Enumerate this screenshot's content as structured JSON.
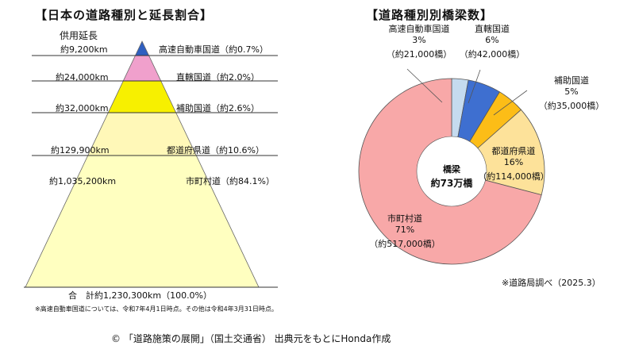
{
  "left_title": "【日本の道路種別と延長割合】",
  "right_title": "【道路種別別橋梁数】",
  "pyramid": {
    "header": "供用延長",
    "total_label": "合　計約1,230,300km（100.0%）",
    "footnote": "※高速自動車国道については、令和7年4月1日時点。その他は令和4年3月31日時点。"
  },
  "pie": {
    "center_line1": "橋梁",
    "center_line2": "約73万橋",
    "source_note": "※道路局調べ（2025.3）"
  },
  "credit": "© 「道路施策の展開」（国土交通省） 出典元をもとにHonda作成",
  "colors": {
    "expressway": "#2f5fc0",
    "national_direct": "#f0a0cc",
    "national_aux": "#f7f000",
    "prefectural": "#fff8b8",
    "municipal": "#ffffc0",
    "pie_expressway": "#c5dbef",
    "pie_direct": "#3e6fd0",
    "pie_aux": "#fcbd17",
    "pie_prefectural": "#fde29a",
    "pie_municipal": "#f8a8a8"
  },
  "chart_data": [
    {
      "type": "bar",
      "title": "【日本の道路種別と延長割合】",
      "categories": [
        "高速自動車国道",
        "直轄国道",
        "補助国道",
        "都道府県道",
        "市町村道"
      ],
      "lengths": [
        "約9,200km",
        "約24,000km",
        "約32,000km",
        "約129,900km",
        "約1,035,200km"
      ],
      "labels": [
        "高速自動車国道（約0.7%）",
        "直轄国道（約2.0%）",
        "補助国道（約2.6%）",
        "都道府県道（約10.6%）",
        "市町村道（約84.1%）"
      ],
      "values": [
        9200,
        24000,
        32000,
        129900,
        1035200
      ],
      "percents": [
        0.7,
        2.0,
        2.6,
        10.6,
        84.1
      ],
      "total": "合　計約1,230,300km（100.0%）"
    },
    {
      "type": "pie",
      "title": "【道路種別別橋梁数】",
      "slices": [
        {
          "name": "高速自動車国道",
          "pct_label": "3%",
          "count_label": "（約21,000橋）",
          "value": 21000
        },
        {
          "name": "直轄国道",
          "pct_label": "6%",
          "count_label": "（約42,000橋）",
          "value": 42000
        },
        {
          "name": "補助国道",
          "pct_label": "5%",
          "count_label": "（約35,000橋）",
          "value": 35000
        },
        {
          "name": "都道府県道",
          "pct_label": "16%",
          "count_label": "（約114,000橋）",
          "value": 114000
        },
        {
          "name": "市町村道",
          "pct_label": "71%",
          "count_label": "（約517,000橋）",
          "value": 517000
        }
      ],
      "center_label": [
        "橋梁",
        "約73万橋"
      ]
    }
  ]
}
